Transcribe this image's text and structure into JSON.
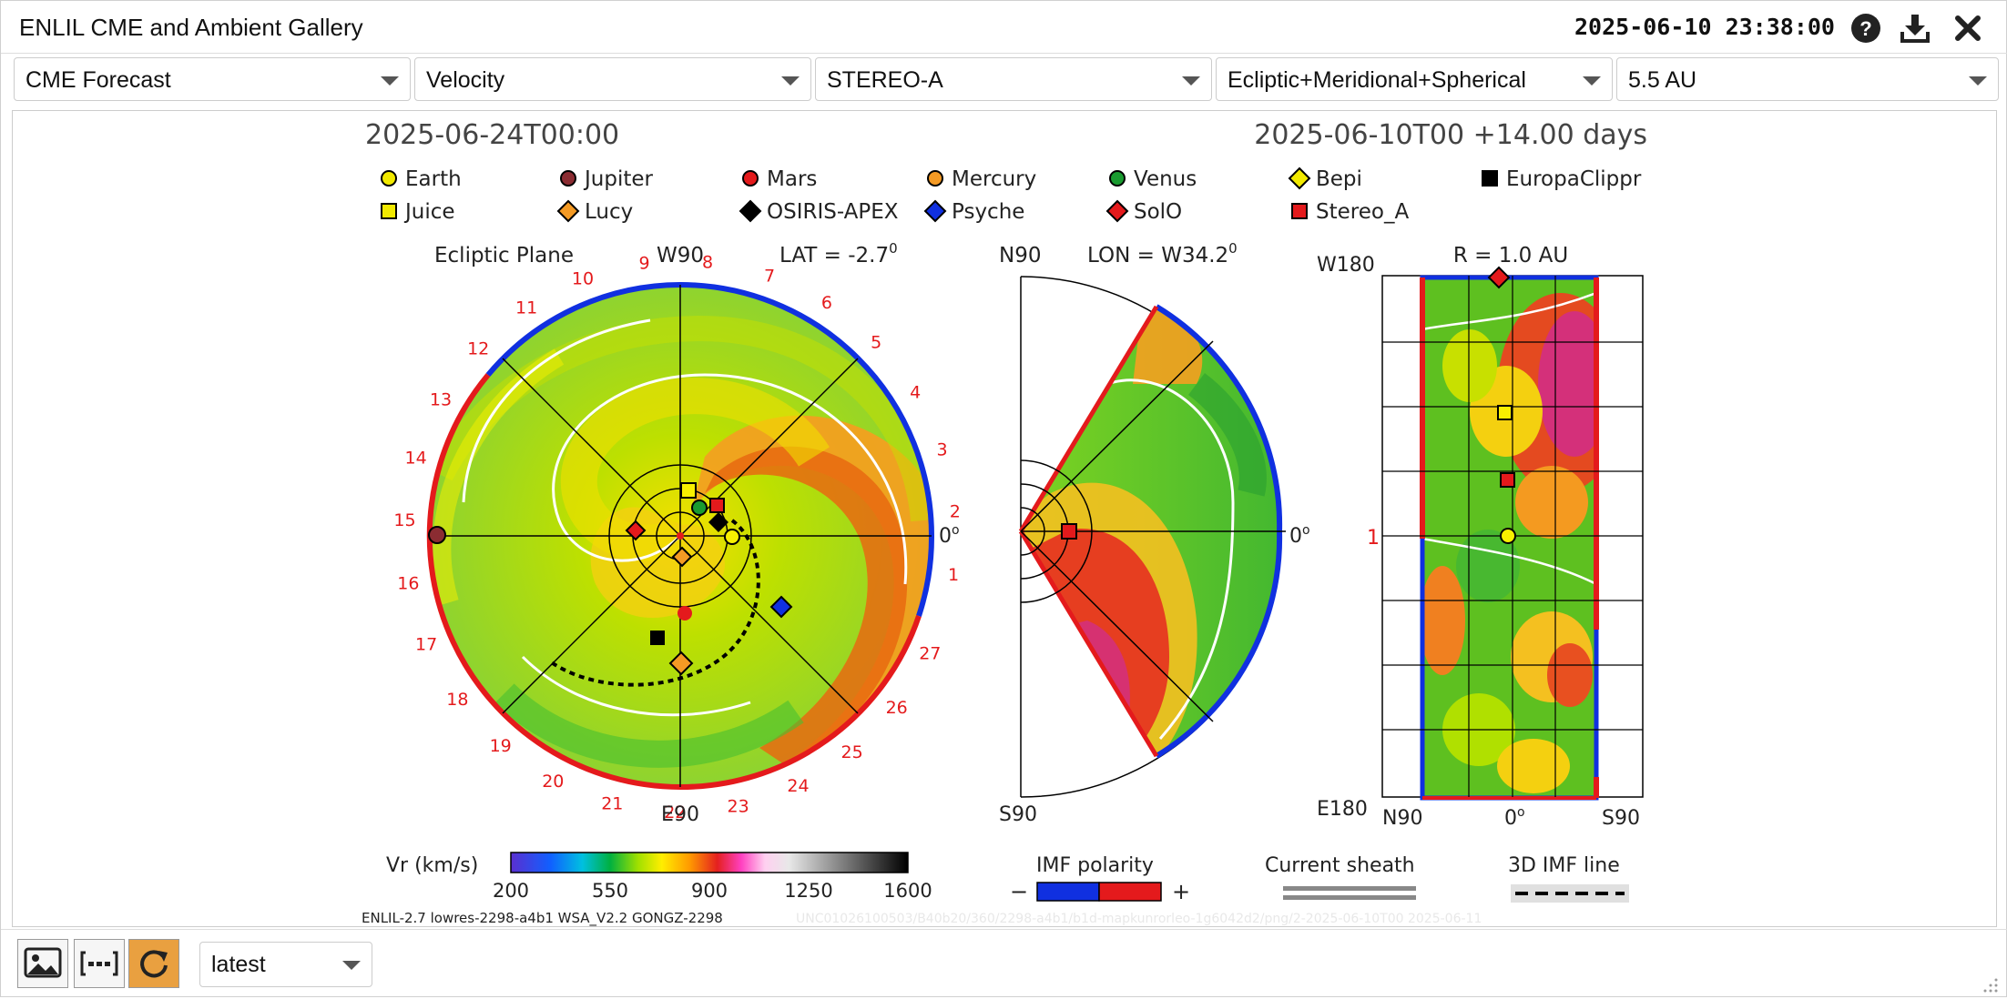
{
  "app": {
    "title": "ENLIL CME and Ambient Gallery",
    "timestamp": "2025-06-10 23:38:00"
  },
  "toolbar": {
    "dropdowns": [
      {
        "value": "CME Forecast"
      },
      {
        "value": "Velocity"
      },
      {
        "value": "STEREO-A"
      },
      {
        "value": "Ecliptic+Meridional+Spherical"
      },
      {
        "value": "5.5 AU"
      }
    ]
  },
  "plot": {
    "date_left": "2025-06-24T00:00",
    "date_right": "2025-06-10T00  +14.00 days",
    "legend": [
      {
        "label": "Earth",
        "shape": "circle",
        "color": "#f2ea00"
      },
      {
        "label": "Jupiter",
        "shape": "circle",
        "color": "#8b2c32"
      },
      {
        "label": "Mars",
        "shape": "circle",
        "color": "#e41a1c"
      },
      {
        "label": "Mercury",
        "shape": "circle",
        "color": "#f49a24"
      },
      {
        "label": "Venus",
        "shape": "circle",
        "color": "#1a9b30"
      },
      {
        "label": "Bepi",
        "shape": "diamond",
        "color": "#f2ea00"
      },
      {
        "label": "EuropaClippr",
        "shape": "square",
        "color": "#000000"
      },
      {
        "label": "Juice",
        "shape": "square",
        "color": "#f2ea00"
      },
      {
        "label": "Lucy",
        "shape": "diamond",
        "color": "#f49a24"
      },
      {
        "label": "OSIRIS-APEX",
        "shape": "diamond",
        "color": "#000000"
      },
      {
        "label": "Psyche",
        "shape": "diamond",
        "color": "#1030e0"
      },
      {
        "label": "SolO",
        "shape": "diamond",
        "color": "#e41a1c"
      },
      {
        "label": "Stereo_A",
        "shape": "square",
        "color": "#e41a1c"
      }
    ],
    "ecliptic": {
      "title": "Ecliptic Plane",
      "top_label": "W90",
      "lat_prefix": "LAT = ",
      "lat_value": "-2.7",
      "deg": "0",
      "right_label": "0",
      "bottom_label": "E90",
      "hours": [
        "1",
        "2",
        "3",
        "4",
        "5",
        "6",
        "7",
        "8",
        "9",
        "10",
        "11",
        "12",
        "13",
        "14",
        "15",
        "16",
        "17",
        "18",
        "19",
        "20",
        "21",
        "22",
        "23",
        "24",
        "25",
        "26",
        "27"
      ]
    },
    "meridional": {
      "top_left": "N90",
      "lon_prefix": "LON = ",
      "lon_value": "W34.2",
      "deg": "0",
      "right_label": "0",
      "bottom_label": "S90"
    },
    "spherical": {
      "r_label": "R = 1.0 AU",
      "top_left": "W180",
      "bottom_left": "E180",
      "mid_label": "1",
      "x_left": "N90",
      "x_mid": "0",
      "x_right": "S90"
    },
    "colorbar": {
      "label": "Vr (km/s)",
      "ticks": [
        "200",
        "550",
        "900",
        "1250",
        "1600"
      ]
    },
    "imf": {
      "label": "IMF polarity",
      "minus": "−",
      "plus": "+"
    },
    "sheath": {
      "label": "Current sheath"
    },
    "imf_line": {
      "label": "3D IMF line"
    },
    "version": "ENLIL-2.7 lowres-2298-a4b1 WSA_V2.2 GONGZ-2298",
    "watermark": "UNC01026100503/B40b20/360/2298-a4b1/b1d-mapkunrorleo-1g6042d2/png/2-2025-06-10T00  2025-06-11"
  },
  "colors": {
    "red": "#e41a1c",
    "blue": "#1030e0",
    "accent_orange": "#e9a040"
  },
  "footer": {
    "selected": "latest"
  }
}
